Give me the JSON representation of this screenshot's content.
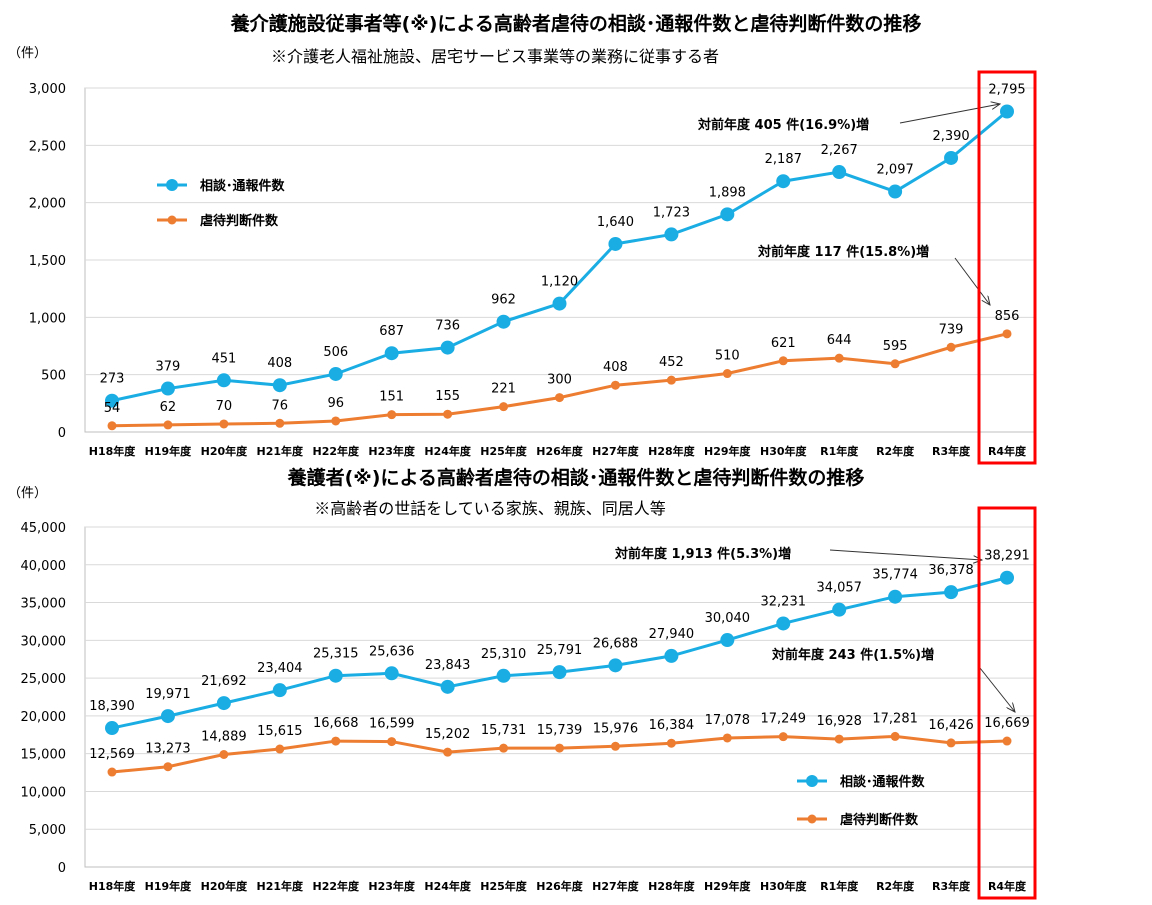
{
  "colors": {
    "consult": "#1AADE4",
    "judged": "#ED7D31",
    "highlight": "#FF0000",
    "grid": "#D9D9D9"
  },
  "chart_data": [
    {
      "type": "line",
      "title": "養介護施設従事者等(※)による高齢者虐待の相談･通報件数と虐待判断件数の推移",
      "subtitle": "※介護老人福祉施設、居宅サービス事業等の業務に従事する者",
      "ylabel": "（件）",
      "ylim": [
        0,
        3000
      ],
      "yticks": [
        "0",
        "500",
        "1,000",
        "1,500",
        "2,000",
        "2,500",
        "3,000"
      ],
      "ytick_values": [
        0,
        500,
        1000,
        1500,
        2000,
        2500,
        3000
      ],
      "categories": [
        "H18年度",
        "H19年度",
        "H20年度",
        "H21年度",
        "H22年度",
        "H23年度",
        "H24年度",
        "H25年度",
        "H26年度",
        "H27年度",
        "H28年度",
        "H29年度",
        "H30年度",
        "R1年度",
        "R2年度",
        "R3年度",
        "R4年度"
      ],
      "series": [
        {
          "name": "相談･通報件数",
          "values": [
            273,
            379,
            451,
            408,
            506,
            687,
            736,
            962,
            1120,
            1640,
            1723,
            1898,
            2187,
            2267,
            2097,
            2390,
            2795
          ],
          "labels": [
            "273",
            "379",
            "451",
            "408",
            "506",
            "687",
            "736",
            "962",
            "1,120",
            "1,640",
            "1,723",
            "1,898",
            "2,187",
            "2,267",
            "2,097",
            "2,390",
            "2,795"
          ]
        },
        {
          "name": "虐待判断件数",
          "values": [
            54,
            62,
            70,
            76,
            96,
            151,
            155,
            221,
            300,
            408,
            452,
            510,
            621,
            644,
            595,
            739,
            856
          ],
          "labels": [
            "54",
            "62",
            "70",
            "76",
            "96",
            "151",
            "155",
            "221",
            "300",
            "408",
            "452",
            "510",
            "621",
            "644",
            "595",
            "739",
            "856"
          ]
        }
      ],
      "legend": "left-upper",
      "highlight": "R4年度",
      "annotations": [
        "対前年度 405 件(16.9%)増",
        "対前年度 117 件(15.8%)増"
      ]
    },
    {
      "type": "line",
      "title": "養護者(※)による高齢者虐待の相談･通報件数と虐待判断件数の推移",
      "subtitle": "※高齢者の世話をしている家族、親族、同居人等",
      "ylabel": "（件）",
      "ylim": [
        0,
        45000
      ],
      "yticks": [
        "0",
        "5,000",
        "10,000",
        "15,000",
        "20,000",
        "25,000",
        "30,000",
        "35,000",
        "40,000",
        "45,000"
      ],
      "ytick_values": [
        0,
        5000,
        10000,
        15000,
        20000,
        25000,
        30000,
        35000,
        40000,
        45000
      ],
      "categories": [
        "H18年度",
        "H19年度",
        "H20年度",
        "H21年度",
        "H22年度",
        "H23年度",
        "H24年度",
        "H25年度",
        "H26年度",
        "H27年度",
        "H28年度",
        "H29年度",
        "H30年度",
        "R1年度",
        "R2年度",
        "R3年度",
        "R4年度"
      ],
      "series": [
        {
          "name": "相談･通報件数",
          "values": [
            18390,
            19971,
            21692,
            23404,
            25315,
            25636,
            23843,
            25310,
            25791,
            26688,
            27940,
            30040,
            32231,
            34057,
            35774,
            36378,
            38291
          ],
          "labels": [
            "18,390",
            "19,971",
            "21,692",
            "23,404",
            "25,315",
            "25,636",
            "23,843",
            "25,310",
            "25,791",
            "26,688",
            "27,940",
            "30,040",
            "32,231",
            "34,057",
            "35,774",
            "36,378",
            "38,291"
          ]
        },
        {
          "name": "虐待判断件数",
          "values": [
            12569,
            13273,
            14889,
            15615,
            16668,
            16599,
            15202,
            15731,
            15739,
            15976,
            16384,
            17078,
            17249,
            16928,
            17281,
            16426,
            16669
          ],
          "labels": [
            "12,569",
            "13,273",
            "14,889",
            "15,615",
            "16,668",
            "16,599",
            "15,202",
            "15,731",
            "15,739",
            "15,976",
            "16,384",
            "17,078",
            "17,249",
            "16,928",
            "17,281",
            "16,426",
            "16,669"
          ]
        }
      ],
      "legend": "bottom-right",
      "highlight": "R4年度",
      "annotations": [
        "対前年度 1,913 件(5.3%)増",
        "対前年度 243 件(1.5%)増"
      ]
    }
  ]
}
